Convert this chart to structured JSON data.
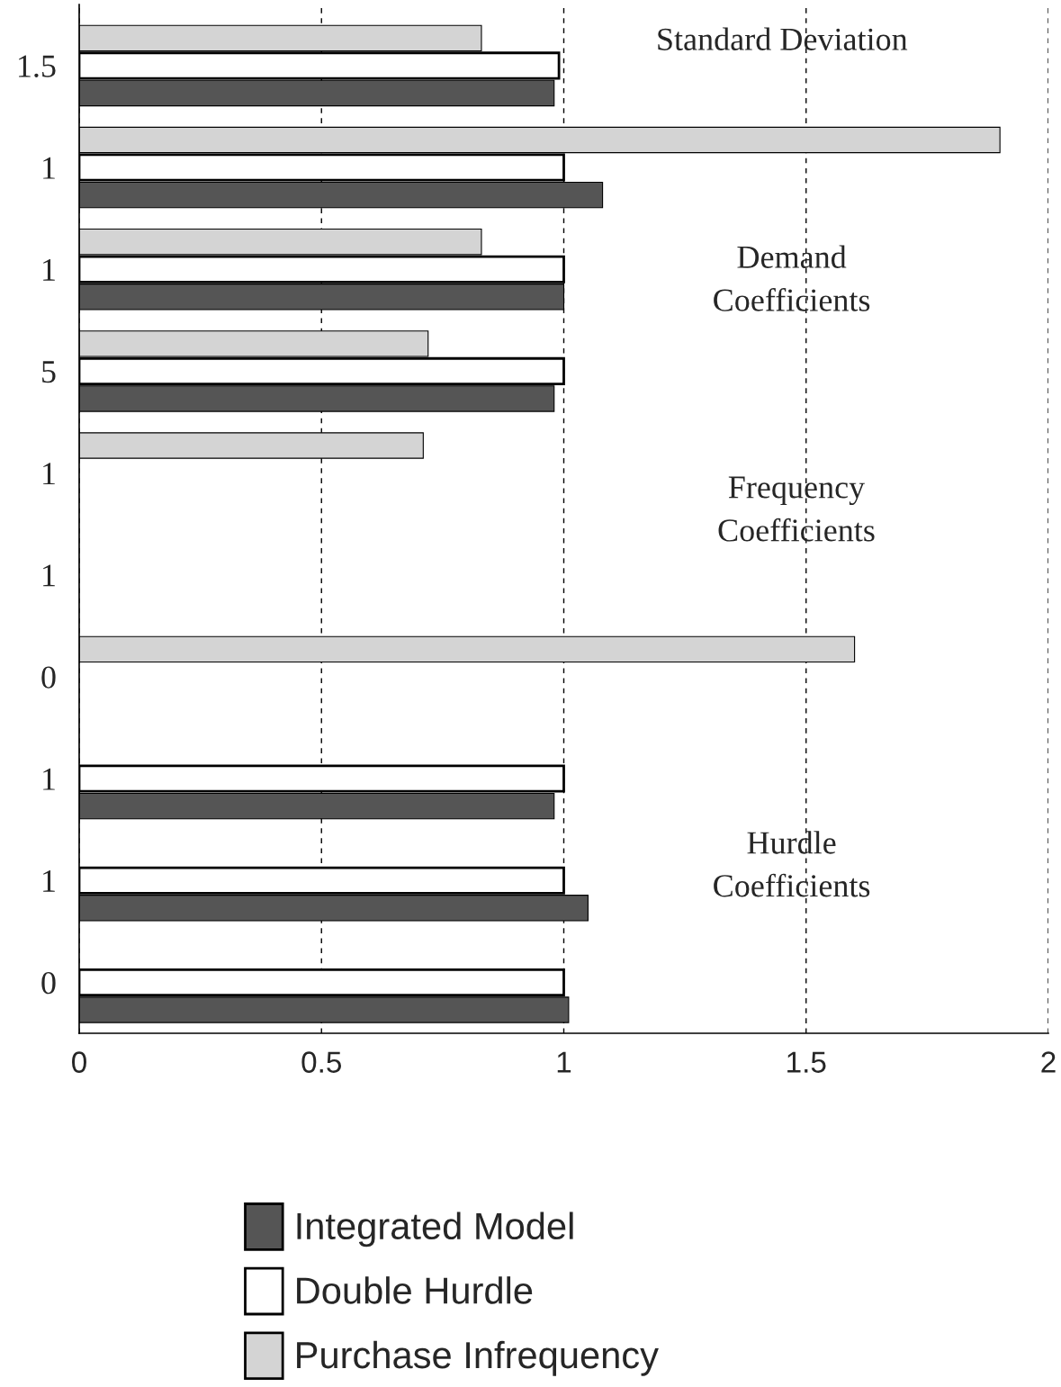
{
  "chart_data": {
    "type": "bar",
    "orientation": "horizontal",
    "categories": [
      "1.5",
      "1",
      "1",
      "5",
      "1",
      "1",
      "0",
      "1",
      "1",
      "0"
    ],
    "series": [
      {
        "name": "Integrated Model",
        "color": "#555555",
        "values": [
          0.98,
          1.08,
          1.0,
          0.98,
          null,
          null,
          null,
          0.98,
          1.05,
          1.01
        ]
      },
      {
        "name": "Double Hurdle",
        "color": "#ffffff",
        "values": [
          0.99,
          1.0,
          1.0,
          1.0,
          null,
          null,
          null,
          1.0,
          1.0,
          1.0
        ]
      },
      {
        "name": "Purchase Infrequency",
        "color": "#d4d4d4",
        "values": [
          0.83,
          1.9,
          0.83,
          0.72,
          0.71,
          null,
          1.6,
          null,
          null,
          null
        ]
      }
    ],
    "xlim": [
      0,
      2
    ],
    "xticks": [
      0,
      0.5,
      1,
      1.5,
      2
    ],
    "grid": "x",
    "legend": "bottom",
    "annotations": [
      "Standard Deviation",
      "Demand\nCoefficients",
      "Frequency\nCoefficients",
      "Hurdle\nCoefficients"
    ]
  }
}
